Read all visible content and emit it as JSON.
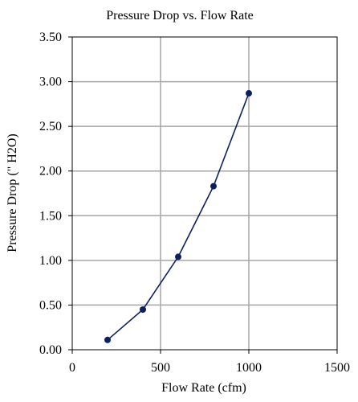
{
  "chart_data": {
    "type": "line",
    "title": "Pressure Drop vs. Flow Rate",
    "xlabel": "Flow Rate (cfm)",
    "ylabel": "Pressure Drop (\" H2O)",
    "xlim": [
      0,
      1500
    ],
    "ylim": [
      0,
      3.5
    ],
    "xticks": [
      0,
      500,
      1000,
      1500
    ],
    "xtick_labels": [
      "0",
      "500",
      "1000",
      "1500"
    ],
    "yticks": [
      0,
      0.5,
      1.0,
      1.5,
      2.0,
      2.5,
      3.0,
      3.5
    ],
    "ytick_labels": [
      "0.00",
      "0.50",
      "1.00",
      "1.50",
      "2.00",
      "2.50",
      "3.00",
      "3.50"
    ],
    "grid": true,
    "legend": "none",
    "series": [
      {
        "color": "#0d1f5c",
        "x": [
          200,
          400,
          600,
          800,
          1000
        ],
        "y": [
          0.11,
          0.45,
          1.04,
          1.83,
          2.87
        ]
      }
    ]
  }
}
